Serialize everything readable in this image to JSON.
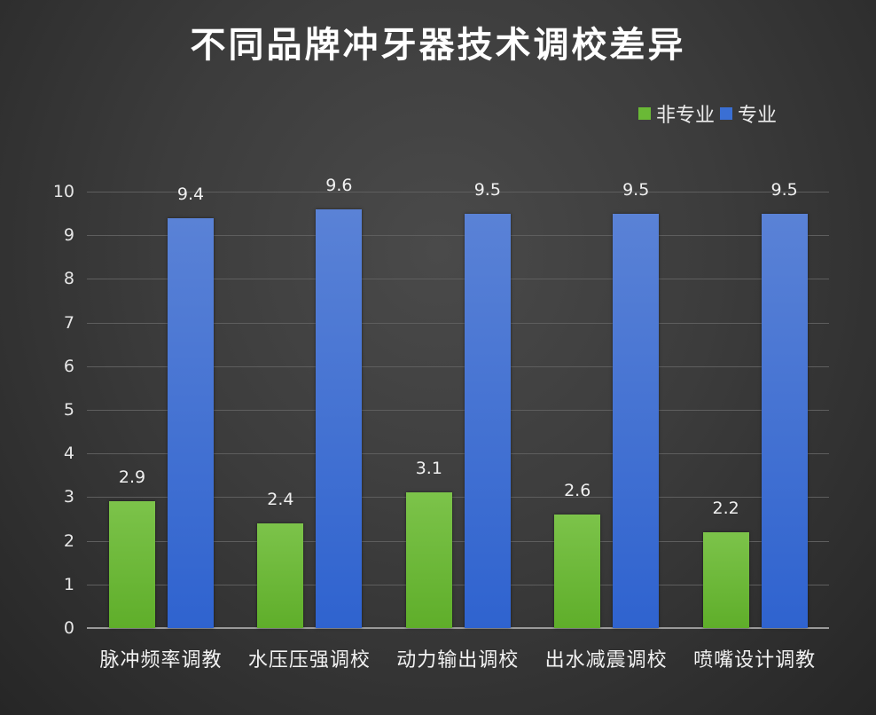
{
  "title": "不同品牌冲牙器技术调校差异",
  "legend": [
    {
      "label": "非专业",
      "color": "#6ab936"
    },
    {
      "label": "专业",
      "color": "#3a6fd4"
    }
  ],
  "y_ticks": [
    "0",
    "1",
    "2",
    "3",
    "4",
    "5",
    "6",
    "7",
    "8",
    "9",
    "10"
  ],
  "chart_data": {
    "type": "bar",
    "title": "不同品牌冲牙器技术调校差异",
    "xlabel": "",
    "ylabel": "",
    "ylim": [
      0,
      10
    ],
    "grid": true,
    "legend_position": "top-right",
    "categories": [
      "脉冲频率调教",
      "水压压强调校",
      "动力输出调校",
      "出水减震调校",
      "喷嘴设计调教"
    ],
    "series": [
      {
        "name": "非专业",
        "color": "#6ab936",
        "values": [
          2.9,
          2.4,
          3.1,
          2.6,
          2.2
        ],
        "labels": [
          "2.9",
          "2.4",
          "3.1",
          "2.6",
          "2.2"
        ]
      },
      {
        "name": "专业",
        "color": "#3a6fd4",
        "values": [
          9.4,
          9.6,
          9.5,
          9.5,
          9.5
        ],
        "labels": [
          "9.4",
          "9.6",
          "9.5",
          "9.5",
          "9.5"
        ]
      }
    ]
  }
}
